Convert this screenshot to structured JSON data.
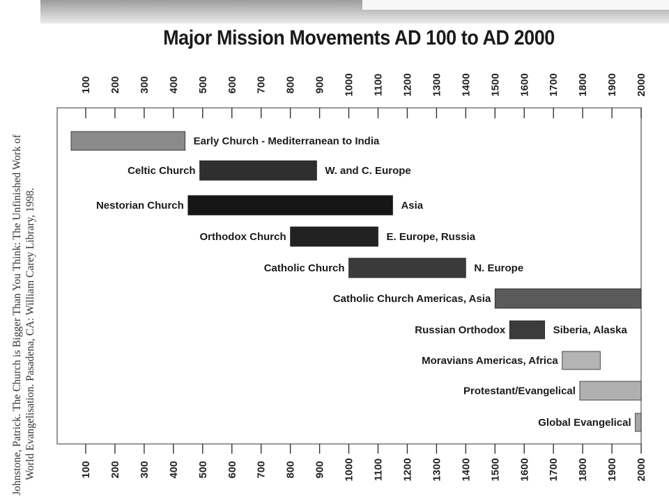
{
  "citation": {
    "line1": "Johnstone, Patrick. The Church is Bigger Than You Think: The Unfinished Work of",
    "line2": "World Evangelisation. Pasadena, CA: William Carey Library, 1998."
  },
  "chart_data": {
    "type": "bar",
    "orientation": "horizontal-timeline",
    "title": "Major Mission Movements AD 100 to AD 2000",
    "xlabel": "",
    "ylabel": "",
    "xlim": [
      50,
      2000
    ],
    "x_ticks": [
      "100",
      "200",
      "300",
      "400",
      "500",
      "600",
      "700",
      "800",
      "900",
      "1000",
      "1100",
      "1200",
      "1300",
      "1400",
      "1500",
      "1600",
      "1700",
      "1800",
      "1900",
      "2000"
    ],
    "grid": false,
    "legend": "none",
    "bars": [
      {
        "name": "Early Church",
        "region": "Mediterranean to India",
        "label_left": "",
        "label_right": "Early Church - Mediterranean to India",
        "start": 50,
        "end": 440,
        "fill": "#8a8a8a"
      },
      {
        "name": "Celtic Church",
        "region": "W. and C. Europe",
        "label_left": "Celtic Church",
        "label_right": "W. and C. Europe",
        "start": 490,
        "end": 890,
        "fill": "#2f2f2f"
      },
      {
        "name": "Nestorian Church",
        "region": "Asia",
        "label_left": "Nestorian Church",
        "label_right": "Asia",
        "start": 450,
        "end": 1150,
        "fill": "#161616"
      },
      {
        "name": "Orthodox Church",
        "region": "E. Europe, Russia",
        "label_left": "Orthodox Church",
        "label_right": "E. Europe, Russia",
        "start": 800,
        "end": 1100,
        "fill": "#222222"
      },
      {
        "name": "Catholic Church",
        "region": "N. Europe",
        "label_left": "Catholic Church",
        "label_right": "N. Europe",
        "start": 1000,
        "end": 1400,
        "fill": "#3a3a3a"
      },
      {
        "name": "Catholic Church",
        "region": "Americas, Asia",
        "label_left": "Catholic Church   Americas, Asia",
        "label_right": "",
        "start": 1500,
        "end": 2000,
        "fill": "#5a5a5a"
      },
      {
        "name": "Russian Orthodox",
        "region": "Siberia, Alaska",
        "label_left": "Russian Orthodox",
        "label_right": "Siberia, Alaska",
        "start": 1550,
        "end": 1670,
        "fill": "#3c3c3c"
      },
      {
        "name": "Moravians",
        "region": "Americas, Africa",
        "label_left": "Moravians  Americas, Africa",
        "label_right": "",
        "start": 1730,
        "end": 1860,
        "fill": "#b4b4b4"
      },
      {
        "name": "Protestant/Evangelical",
        "region": "",
        "label_left": "Protestant/Evangelical",
        "label_right": "",
        "start": 1790,
        "end": 2000,
        "fill": "#b0b0b0"
      },
      {
        "name": "Global Evangelical",
        "region": "",
        "label_left": "Global Evangelical",
        "label_right": "",
        "start": 1980,
        "end": 2000,
        "fill": "#a6a6a6"
      }
    ]
  }
}
